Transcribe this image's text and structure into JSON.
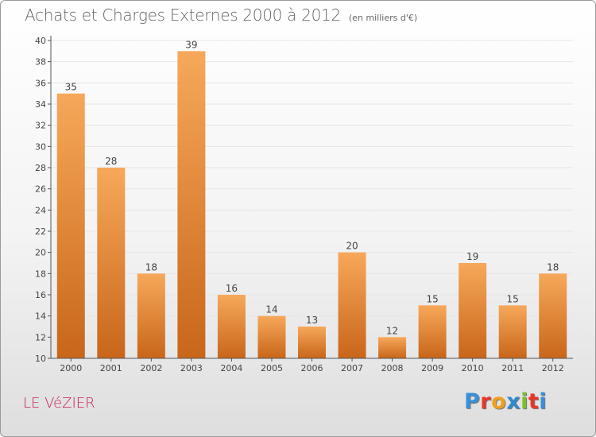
{
  "title": "Achats et Charges Externes 2000 à 2012",
  "subtitle": "(en milliers d'€)",
  "place_name": "LE VéZIER",
  "logo": {
    "text": "Proxiti",
    "letter_colors": [
      "#3a8fd6",
      "#e8362a",
      "#f0a020",
      "#2e8ad0",
      "#7bbf2a",
      "#e8362a",
      "#3a8fd6"
    ]
  },
  "colors": {
    "bar_top": "#f7a85a",
    "bar_bottom": "#c8661a",
    "axis": "#555555",
    "grid": "#e6e6e6",
    "label": "#444444"
  },
  "chart_data": {
    "type": "bar",
    "title": "Achats et Charges Externes 2000 à 2012",
    "subtitle": "(en milliers d'€)",
    "xlabel": "",
    "ylabel": "",
    "categories": [
      "2000",
      "2001",
      "2002",
      "2003",
      "2004",
      "2005",
      "2006",
      "2007",
      "2008",
      "2009",
      "2010",
      "2011",
      "2012"
    ],
    "values": [
      35,
      28,
      18,
      39,
      16,
      14,
      13,
      20,
      12,
      15,
      19,
      15,
      18
    ],
    "ylim": [
      10,
      40
    ],
    "yticks": [
      10,
      12,
      14,
      16,
      18,
      20,
      22,
      24,
      26,
      28,
      30,
      32,
      34,
      36,
      38,
      40
    ],
    "grid": true,
    "legend": "none"
  }
}
